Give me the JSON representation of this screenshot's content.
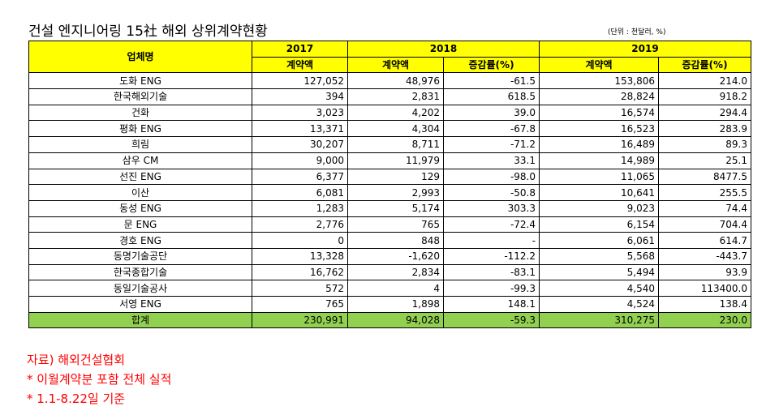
{
  "title": "건설 엔지니어링 15社 해외 상위계약현황",
  "unit": "(단위 : 천달러, %)",
  "header": {
    "company": "업체명",
    "y2017": "2017",
    "y2018": "2018",
    "y2019": "2019",
    "contract": "계약액",
    "change": "증감률(%)"
  },
  "rows": [
    {
      "name": "도화 ENG",
      "c2017": "127,052",
      "c2018": "48,976",
      "ch2018": "-61.5",
      "c2019": "153,806",
      "ch2019": "214.0"
    },
    {
      "name": "한국해외기술",
      "c2017": "394",
      "c2018": "2,831",
      "ch2018": "618.5",
      "c2019": "28,824",
      "ch2019": "918.2"
    },
    {
      "name": "건화",
      "c2017": "3,023",
      "c2018": "4,202",
      "ch2018": "39.0",
      "c2019": "16,574",
      "ch2019": "294.4"
    },
    {
      "name": "평화 ENG",
      "c2017": "13,371",
      "c2018": "4,304",
      "ch2018": "-67.8",
      "c2019": "16,523",
      "ch2019": "283.9"
    },
    {
      "name": "희림",
      "c2017": "30,207",
      "c2018": "8,711",
      "ch2018": "-71.2",
      "c2019": "16,489",
      "ch2019": "89.3"
    },
    {
      "name": "삼우 CM",
      "c2017": "9,000",
      "c2018": "11,979",
      "ch2018": "33.1",
      "c2019": "14,989",
      "ch2019": "25.1"
    },
    {
      "name": "선진 ENG",
      "c2017": "6,377",
      "c2018": "129",
      "ch2018": "-98.0",
      "c2019": "11,065",
      "ch2019": "8477.5"
    },
    {
      "name": "이산",
      "c2017": "6,081",
      "c2018": "2,993",
      "ch2018": "-50.8",
      "c2019": "10,641",
      "ch2019": "255.5"
    },
    {
      "name": "동성 ENG",
      "c2017": "1,283",
      "c2018": "5,174",
      "ch2018": "303.3",
      "c2019": "9,023",
      "ch2019": "74.4"
    },
    {
      "name": "문 ENG",
      "c2017": "2,776",
      "c2018": "765",
      "ch2018": "-72.4",
      "c2019": "6,154",
      "ch2019": "704.4"
    },
    {
      "name": "경호 ENG",
      "c2017": "0",
      "c2018": "848",
      "ch2018": "-",
      "c2019": "6,061",
      "ch2019": "614.7"
    },
    {
      "name": "동명기술공단",
      "c2017": "13,328",
      "c2018": "-1,620",
      "ch2018": "-112.2",
      "c2019": "5,568",
      "ch2019": "-443.7"
    },
    {
      "name": "한국종합기술",
      "c2017": "16,762",
      "c2018": "2,834",
      "ch2018": "-83.1",
      "c2019": "5,494",
      "ch2019": "93.9"
    },
    {
      "name": "동일기술공사",
      "c2017": "572",
      "c2018": "4",
      "ch2018": "-99.3",
      "c2019": "4,540",
      "ch2019": "113400.0"
    },
    {
      "name": "서영 ENG",
      "c2017": "765",
      "c2018": "1,898",
      "ch2018": "148.1",
      "c2019": "4,524",
      "ch2019": "138.4"
    }
  ],
  "total": {
    "name": "합계",
    "c2017": "230,991",
    "c2018": "94,028",
    "ch2018": "-59.3",
    "c2019": "310,275",
    "ch2019": "230.0"
  },
  "notes": [
    "자료) 해외건설협회",
    "* 이월계약분 포함 전체 실적",
    "* 1.1-8.22일 기준"
  ],
  "colors": {
    "header": "#ffff00",
    "total": "#92d050",
    "notes": "#ff0000"
  }
}
